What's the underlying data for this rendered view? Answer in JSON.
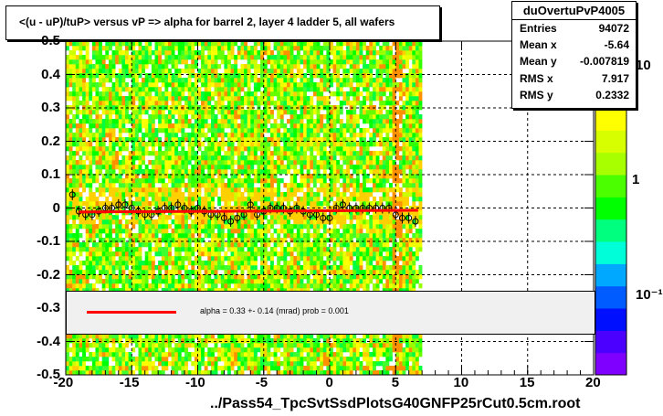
{
  "title": "<(u - uP)/tuP> versus  vP => alpha for barrel 2, layer 4 ladder 5, all wafers",
  "stats": {
    "name": "duOvertuPvP4005",
    "rows": [
      {
        "label": "Entries",
        "value": "94072"
      },
      {
        "label": "Mean x",
        "value": "-5.64"
      },
      {
        "label": "Mean y",
        "value": "-0.007819"
      },
      {
        "label": "RMS x",
        "value": "7.917"
      },
      {
        "label": "RMS y",
        "value": "0.2332"
      }
    ]
  },
  "legend": {
    "text": "alpha =     0.33 +-  0.14 (mrad) prob = 0.001",
    "line_color": "#ff0000"
  },
  "footer": "../Pass54_TpcSvtSsdPlotsG40GNFP25rCut0.5cm.root",
  "colorbar": {
    "labels": [
      {
        "text": "10",
        "value": 10
      },
      {
        "text": "1",
        "value": 1
      },
      {
        "text": "10⁻¹",
        "value": 0.1
      }
    ]
  },
  "colors": {
    "profile_line": "#ff0000",
    "palette": [
      "#7f00ff",
      "#4b00ff",
      "#0010ff",
      "#005cff",
      "#00a8ff",
      "#00ffd8",
      "#00ff7f",
      "#00ff00",
      "#4cff00",
      "#a8ff00",
      "#d8ff00",
      "#ffff00",
      "#ffb000",
      "#ff6000",
      "#ff0000"
    ]
  },
  "chart_data": {
    "type": "heatmap",
    "title": "<(u - uP)/tuP> versus  vP => alpha for barrel 2, layer 4 ladder 5, all wafers",
    "xlabel": "",
    "ylabel": "",
    "xlim": [
      -20,
      20
    ],
    "ylim": [
      -0.5,
      0.5
    ],
    "xticks": [
      -20,
      -15,
      -10,
      -5,
      0,
      5,
      10,
      15,
      20
    ],
    "yticks": [
      -0.5,
      -0.4,
      -0.3,
      -0.2,
      -0.1,
      0,
      0.1,
      0.2,
      0.3,
      0.4,
      0.5
    ],
    "ztick_labels": [
      "10",
      "1",
      "10⁻¹"
    ],
    "z_scale": "log",
    "grid": true,
    "occupied_x_range": [
      -20,
      7
    ],
    "profile_points": {
      "x": [
        -19.5,
        -19,
        -18.5,
        -18,
        -17.5,
        -17,
        -16.5,
        -16,
        -15.5,
        -15,
        -14.5,
        -14,
        -13.5,
        -13,
        -12.5,
        -12,
        -11.5,
        -11,
        -10.5,
        -10,
        -9.5,
        -9,
        -8.5,
        -8,
        -7.5,
        -7,
        -6.5,
        -6,
        -5.5,
        -5,
        -4.5,
        -4,
        -3.5,
        -3,
        -2.5,
        -2,
        -1.5,
        -1,
        -0.5,
        0,
        0.5,
        1,
        1.5,
        2,
        2.5,
        3,
        3.5,
        4,
        4.5,
        5,
        5.5,
        6,
        6.5
      ],
      "y": [
        0.04,
        -0.01,
        -0.02,
        -0.02,
        -0.01,
        0.0,
        0.0,
        0.01,
        0.01,
        0.0,
        -0.01,
        -0.02,
        -0.02,
        -0.01,
        0.0,
        0.0,
        0.01,
        0.0,
        -0.01,
        0.0,
        -0.01,
        -0.02,
        -0.02,
        -0.03,
        -0.04,
        -0.03,
        -0.02,
        0.01,
        -0.02,
        -0.01,
        0.0,
        0.0,
        0.0,
        -0.01,
        0.0,
        -0.01,
        -0.02,
        -0.02,
        -0.03,
        -0.03,
        0.0,
        0.01,
        0.0,
        0.0,
        0.0,
        0.0,
        0.0,
        0.0,
        0.0,
        -0.02,
        -0.03,
        -0.03,
        -0.04
      ]
    },
    "fit": {
      "name": "alpha",
      "color": "#ff0000",
      "x": [
        -19,
        6.7
      ],
      "y": [
        -0.012,
        -0.007
      ]
    }
  }
}
